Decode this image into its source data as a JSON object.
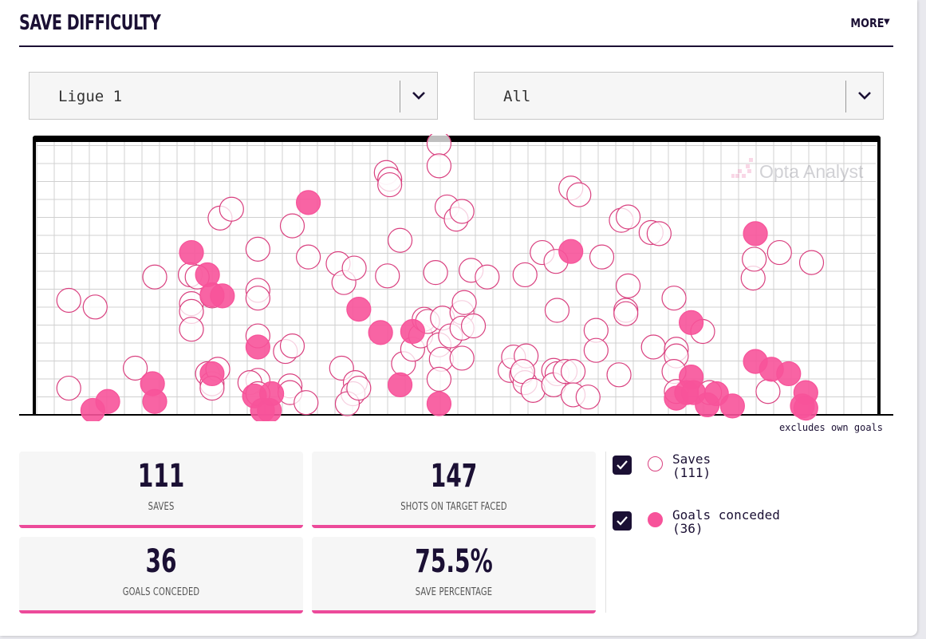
{
  "header": {
    "title": "SAVE DIFFICULTY",
    "more_label": "MORE"
  },
  "filters": {
    "league": "Ligue 1",
    "scope": "All"
  },
  "watermark": "Opta Analyst",
  "note": "excludes own goals",
  "stats": [
    {
      "value": "111",
      "label": "SAVES"
    },
    {
      "value": "147",
      "label": "SHOTS ON TARGET FACED"
    },
    {
      "value": "36",
      "label": "GOALS CONCEDED"
    },
    {
      "value": "75.5%",
      "label": "SAVE PERCENTAGE"
    }
  ],
  "legend": {
    "saves": {
      "label": "Saves",
      "count": "(111)",
      "checked": true
    },
    "goals": {
      "label": "Goals conceded",
      "count": "(36)",
      "checked": true
    }
  },
  "colors": {
    "save_stroke": "#d9407f",
    "goal_fill": "#f7539a",
    "ink": "#1b1034",
    "accent": "#ec4a9a"
  },
  "chart_data": {
    "type": "scatter",
    "description_units": "goal-mouth position, x from left post to right post in metres (0-7.32), y height above ground in metres (0-2.44)",
    "series": [
      {
        "name": "Saves",
        "style": "outline",
        "points": [
          [
            0.28,
            1.03
          ],
          [
            0.51,
            0.97
          ],
          [
            0.86,
            0.42
          ],
          [
            0.28,
            0.24
          ],
          [
            1.03,
            1.24
          ],
          [
            1.34,
            1.26
          ],
          [
            1.4,
            1.24
          ],
          [
            1.35,
            1.0
          ],
          [
            1.35,
            0.93
          ],
          [
            1.35,
            0.77
          ],
          [
            1.6,
            1.77
          ],
          [
            1.53,
            1.07
          ],
          [
            1.49,
            0.37
          ],
          [
            1.53,
            0.28
          ],
          [
            1.58,
            0.41
          ],
          [
            1.7,
            1.85
          ],
          [
            1.53,
            0.24
          ],
          [
            1.93,
            1.49
          ],
          [
            1.93,
            1.12
          ],
          [
            1.93,
            1.05
          ],
          [
            1.93,
            0.71
          ],
          [
            1.93,
            0.31
          ],
          [
            1.86,
            0.29
          ],
          [
            1.93,
            0.19
          ],
          [
            2.17,
            0.57
          ],
          [
            2.23,
            0.62
          ],
          [
            2.21,
            0.26
          ],
          [
            2.21,
            0.2
          ],
          [
            2.35,
            0.11
          ],
          [
            2.23,
            1.7
          ],
          [
            2.37,
            1.42
          ],
          [
            2.63,
            1.36
          ],
          [
            2.68,
            1.19
          ],
          [
            2.77,
            1.32
          ],
          [
            2.66,
            0.42
          ],
          [
            2.78,
            0.29
          ],
          [
            2.76,
            0.19
          ],
          [
            2.71,
            0.1
          ],
          [
            2.81,
            0.24
          ],
          [
            3.05,
            2.18
          ],
          [
            3.08,
            2.12
          ],
          [
            3.08,
            2.07
          ],
          [
            3.06,
            1.25
          ],
          [
            3.17,
            1.57
          ],
          [
            3.2,
            0.46
          ],
          [
            3.28,
            0.59
          ],
          [
            3.35,
            0.71
          ],
          [
            3.38,
            0.86
          ],
          [
            3.41,
            0.84
          ],
          [
            3.48,
            1.28
          ],
          [
            3.51,
            2.44
          ],
          [
            3.51,
            2.24
          ],
          [
            3.54,
            0.87
          ],
          [
            3.51,
            0.63
          ],
          [
            3.53,
            0.5
          ],
          [
            3.51,
            0.32
          ],
          [
            3.61,
            0.71
          ],
          [
            3.58,
            1.87
          ],
          [
            3.66,
            1.76
          ],
          [
            3.71,
            1.83
          ],
          [
            3.71,
            0.92
          ],
          [
            3.71,
            0.78
          ],
          [
            3.71,
            0.51
          ],
          [
            3.81,
            0.8
          ],
          [
            3.73,
            1.01
          ],
          [
            3.79,
            1.3
          ],
          [
            3.93,
            1.24
          ],
          [
            4.13,
            0.4
          ],
          [
            4.16,
            0.52
          ],
          [
            4.23,
            0.36
          ],
          [
            4.26,
            0.29
          ],
          [
            4.27,
            0.53
          ],
          [
            4.26,
            1.26
          ],
          [
            4.24,
            0.39
          ],
          [
            4.33,
            0.22
          ],
          [
            4.41,
            1.46
          ],
          [
            4.53,
            1.38
          ],
          [
            4.51,
            0.4
          ],
          [
            4.54,
            0.37
          ],
          [
            4.51,
            0.27
          ],
          [
            4.54,
            0.94
          ],
          [
            4.61,
            0.39
          ],
          [
            4.68,
            0.39
          ],
          [
            4.68,
            0.18
          ],
          [
            4.66,
            2.04
          ],
          [
            4.73,
            1.98
          ],
          [
            4.81,
            0.16
          ],
          [
            4.93,
            1.42
          ],
          [
            4.88,
            0.76
          ],
          [
            4.88,
            0.58
          ],
          [
            5.1,
            1.75
          ],
          [
            5.16,
            1.78
          ],
          [
            5.08,
            0.36
          ],
          [
            5.14,
            0.94
          ],
          [
            5.16,
            1.16
          ],
          [
            5.14,
            0.91
          ],
          [
            5.36,
            1.64
          ],
          [
            5.43,
            1.63
          ],
          [
            5.38,
            0.61
          ],
          [
            5.56,
            1.05
          ],
          [
            5.58,
            0.59
          ],
          [
            5.58,
            0.53
          ],
          [
            5.56,
            0.39
          ],
          [
            5.58,
            0.21
          ],
          [
            5.81,
            0.75
          ],
          [
            5.87,
            0.2
          ],
          [
            6.25,
            1.23
          ],
          [
            6.26,
            1.4
          ],
          [
            6.48,
            1.46
          ],
          [
            6.38,
            0.21
          ],
          [
            6.76,
            1.37
          ]
        ]
      },
      {
        "name": "Goals conceded",
        "style": "filled",
        "points": [
          [
            0.49,
            0.04
          ],
          [
            0.62,
            0.12
          ],
          [
            1.01,
            0.28
          ],
          [
            1.03,
            0.12
          ],
          [
            1.35,
            1.46
          ],
          [
            1.49,
            1.26
          ],
          [
            1.53,
            1.08
          ],
          [
            1.62,
            1.07
          ],
          [
            1.53,
            0.37
          ],
          [
            1.9,
            0.17
          ],
          [
            1.93,
            0.61
          ],
          [
            1.97,
            0.04
          ],
          [
            2.03,
            0.04
          ],
          [
            2.05,
            0.19
          ],
          [
            2.37,
            1.91
          ],
          [
            2.81,
            0.95
          ],
          [
            3.0,
            0.74
          ],
          [
            3.17,
            0.27
          ],
          [
            3.28,
            0.75
          ],
          [
            3.51,
            0.1
          ],
          [
            4.66,
            1.47
          ],
          [
            5.71,
            0.83
          ],
          [
            5.71,
            0.34
          ],
          [
            5.58,
            0.15
          ],
          [
            5.67,
            0.2
          ],
          [
            5.73,
            0.2
          ],
          [
            5.85,
            0.09
          ],
          [
            5.93,
            0.19
          ],
          [
            6.07,
            0.08
          ],
          [
            6.27,
            1.63
          ],
          [
            6.27,
            0.48
          ],
          [
            6.41,
            0.41
          ],
          [
            6.56,
            0.37
          ],
          [
            6.68,
            0.08
          ],
          [
            6.71,
            0.2
          ],
          [
            6.71,
            0.06
          ]
        ]
      }
    ],
    "xlim": [
      0,
      7.32
    ],
    "ylim": [
      0,
      2.44
    ],
    "grid": true
  }
}
